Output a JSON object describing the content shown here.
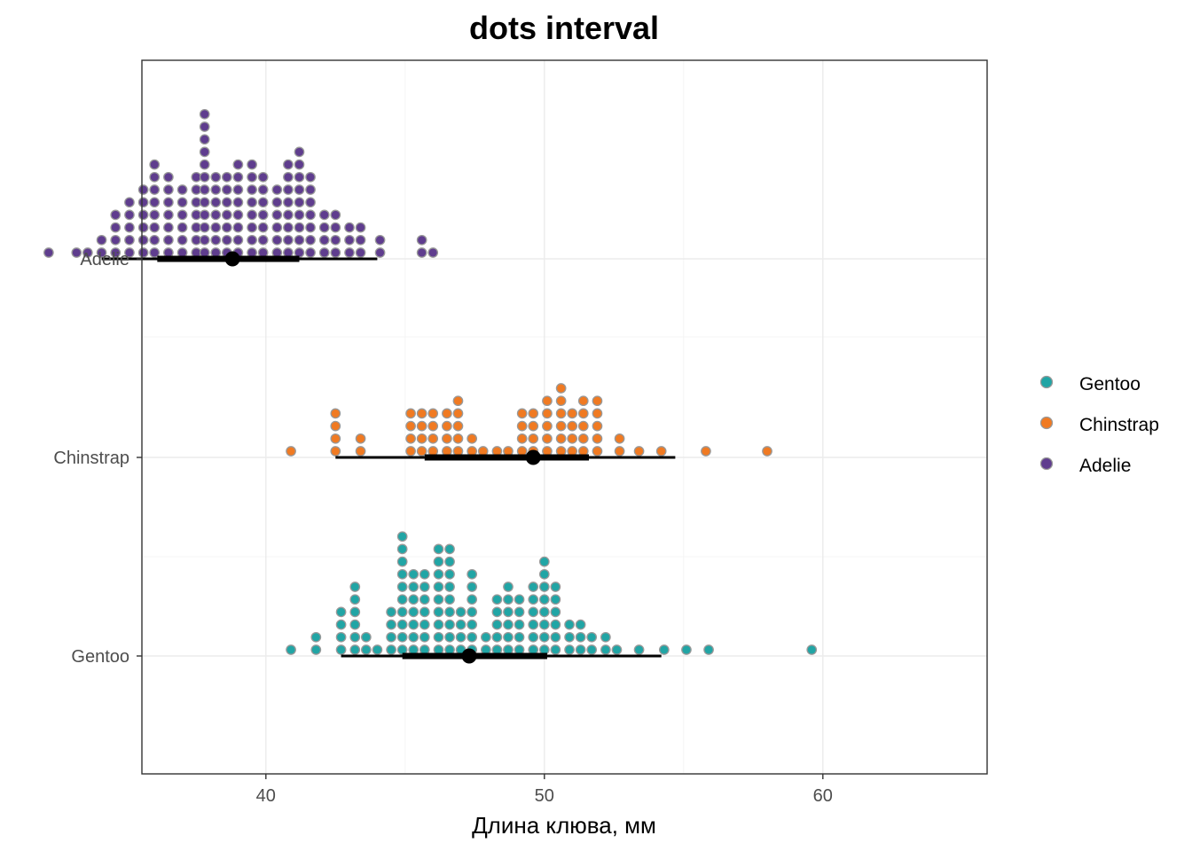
{
  "chart_data": {
    "type": "scatter",
    "subtype": "dots-interval",
    "title": "dots interval",
    "xlabel": "Длина клюва, мм",
    "ylabel": "",
    "xlim": [
      30.8,
      61.0
    ],
    "x_ticks": [
      40,
      50,
      60
    ],
    "x_tick_labels": [
      "40",
      "50",
      "60"
    ],
    "categories": [
      "Adelie",
      "Chinstrap",
      "Gentoo"
    ],
    "grid": true,
    "legend_position": "right",
    "legend": [
      "Gentoo",
      "Chinstrap",
      "Adelie"
    ],
    "colors": {
      "Gentoo": "#21a5a5",
      "Chinstrap": "#f07a22",
      "Adelie": "#5f3d8e",
      "dot_outline": "#999999",
      "interval": "#000000"
    },
    "dot_bin_width_mm": 0.464,
    "series": [
      {
        "name": "Adelie",
        "bins": [
          [
            32.2,
            1
          ],
          [
            33.2,
            1
          ],
          [
            33.6,
            1
          ],
          [
            34.1,
            2
          ],
          [
            34.6,
            4
          ],
          [
            35.1,
            5
          ],
          [
            35.6,
            6
          ],
          [
            36.0,
            8
          ],
          [
            36.5,
            7
          ],
          [
            37.0,
            6
          ],
          [
            37.5,
            7
          ],
          [
            37.8,
            12
          ],
          [
            38.2,
            7
          ],
          [
            38.6,
            7
          ],
          [
            39.0,
            8
          ],
          [
            39.5,
            8
          ],
          [
            39.9,
            7
          ],
          [
            40.4,
            6
          ],
          [
            40.8,
            8
          ],
          [
            41.2,
            9
          ],
          [
            41.6,
            7
          ],
          [
            42.1,
            4
          ],
          [
            42.5,
            4
          ],
          [
            43.0,
            3
          ],
          [
            43.4,
            3
          ],
          [
            44.1,
            2
          ],
          [
            45.6,
            2
          ],
          [
            46.0,
            1
          ]
        ],
        "interval_66": [
          36.1,
          41.2
        ],
        "interval_95": [
          34.1,
          44.0
        ],
        "point": 38.8
      },
      {
        "name": "Chinstrap",
        "bins": [
          [
            40.9,
            1
          ],
          [
            42.5,
            4
          ],
          [
            43.4,
            2
          ],
          [
            45.2,
            4
          ],
          [
            45.6,
            4
          ],
          [
            46.0,
            4
          ],
          [
            46.5,
            4
          ],
          [
            46.9,
            5
          ],
          [
            47.4,
            2
          ],
          [
            47.8,
            1
          ],
          [
            48.3,
            1
          ],
          [
            48.7,
            1
          ],
          [
            49.2,
            4
          ],
          [
            49.6,
            4
          ],
          [
            50.1,
            5
          ],
          [
            50.6,
            6
          ],
          [
            51.0,
            4
          ],
          [
            51.4,
            5
          ],
          [
            51.9,
            5
          ],
          [
            52.7,
            2
          ],
          [
            53.4,
            1
          ],
          [
            54.2,
            1
          ],
          [
            55.8,
            1
          ],
          [
            58.0,
            1
          ]
        ],
        "interval_66": [
          45.7,
          51.6
        ],
        "interval_95": [
          42.5,
          54.7
        ],
        "point": 49.6
      },
      {
        "name": "Gentoo",
        "bins": [
          [
            40.9,
            1
          ],
          [
            41.8,
            2
          ],
          [
            42.7,
            4
          ],
          [
            43.2,
            6
          ],
          [
            43.6,
            2
          ],
          [
            44.0,
            1
          ],
          [
            44.5,
            4
          ],
          [
            44.9,
            10
          ],
          [
            45.3,
            7
          ],
          [
            45.7,
            7
          ],
          [
            46.2,
            9
          ],
          [
            46.6,
            9
          ],
          [
            47.0,
            4
          ],
          [
            47.4,
            7
          ],
          [
            47.9,
            2
          ],
          [
            48.3,
            5
          ],
          [
            48.7,
            6
          ],
          [
            49.1,
            5
          ],
          [
            49.6,
            6
          ],
          [
            50.0,
            8
          ],
          [
            50.4,
            6
          ],
          [
            50.9,
            3
          ],
          [
            51.3,
            3
          ],
          [
            51.7,
            2
          ],
          [
            52.2,
            2
          ],
          [
            52.6,
            1
          ],
          [
            53.4,
            1
          ],
          [
            54.3,
            1
          ],
          [
            55.1,
            1
          ],
          [
            55.9,
            1
          ],
          [
            59.6,
            1
          ]
        ],
        "interval_66": [
          44.9,
          50.1
        ],
        "interval_95": [
          42.7,
          54.2
        ],
        "point": 47.3
      }
    ]
  }
}
